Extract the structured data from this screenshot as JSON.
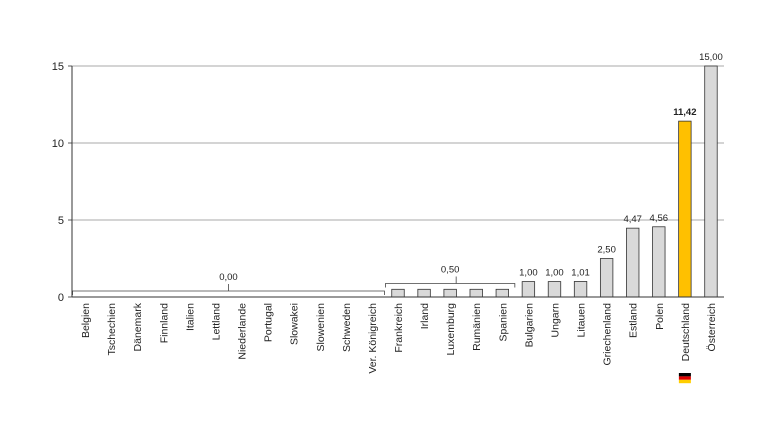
{
  "chart_data": {
    "type": "bar",
    "categories": [
      "Belgien",
      "Tschechien",
      "Dänemark",
      "Finnland",
      "Italien",
      "Lettland",
      "Niederlande",
      "Portugal",
      "Slowakei",
      "Slowenien",
      "Schweden",
      "Ver. Königreich",
      "Frankreich",
      "Irland",
      "Luxemburg",
      "Rumänien",
      "Spanien",
      "Bulgarien",
      "Ungarn",
      "Litauen",
      "Griechenland",
      "Estland",
      "Polen",
      "Deutschland",
      "Österreich"
    ],
    "values": [
      0,
      0,
      0,
      0,
      0,
      0,
      0,
      0,
      0,
      0,
      0,
      0,
      0.5,
      0.5,
      0.5,
      0.5,
      0.5,
      1.0,
      1.0,
      1.01,
      2.5,
      4.47,
      4.56,
      11.42,
      15.0
    ],
    "groups": [
      {
        "from": 0,
        "to": 11,
        "label": "0,00"
      },
      {
        "from": 12,
        "to": 16,
        "label": "0,50"
      }
    ],
    "single_labels": [
      {
        "index": 17,
        "label": "1,00"
      },
      {
        "index": 18,
        "label": "1,00"
      },
      {
        "index": 19,
        "label": "1,01"
      },
      {
        "index": 20,
        "label": "2,50"
      },
      {
        "index": 21,
        "label": "4,47"
      },
      {
        "index": 22,
        "label": "4,56"
      },
      {
        "index": 23,
        "label": "11,42"
      },
      {
        "index": 24,
        "label": "15,00"
      }
    ],
    "highlight_index": 23,
    "highlight_flag": "germany-flag",
    "y_ticks": [
      0,
      5,
      10,
      15
    ],
    "y_tick_labels": [
      "0",
      "5",
      "10",
      "15"
    ],
    "ylim": [
      0,
      15
    ],
    "grid": true,
    "colors": {
      "bar": "#d9d9d9",
      "highlight": "#ffc000",
      "bar_stroke": "#333333",
      "grid": "#8c8c8c"
    }
  }
}
